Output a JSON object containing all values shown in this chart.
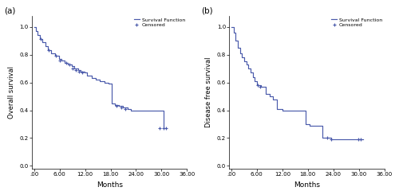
{
  "panel_a": {
    "label": "(a)",
    "ylabel": "Overall survival",
    "xlabel": "Months",
    "xlim": [
      -0.5,
      36
    ],
    "ylim": [
      -0.02,
      1.08
    ],
    "xticks": [
      0,
      6,
      12,
      18,
      24,
      30,
      36
    ],
    "xtick_labels": [
      ".00",
      "6.00",
      "12.00",
      "18.00",
      "24.00",
      "30.00",
      "36.00"
    ],
    "yticks": [
      0.0,
      0.2,
      0.4,
      0.6,
      0.8,
      1.0
    ],
    "ytick_labels": [
      "0.0",
      "0.2",
      "0.4",
      "0.6",
      "0.8",
      "1.0"
    ],
    "step_x": [
      0,
      0.4,
      0.8,
      1.3,
      2.0,
      2.6,
      3.3,
      4.0,
      5.0,
      5.8,
      6.5,
      7.2,
      8.0,
      8.8,
      9.5,
      10.3,
      11.0,
      11.8,
      12.5,
      13.5,
      14.5,
      15.5,
      16.5,
      17.5,
      18.2,
      19.0,
      20.0,
      21.0,
      22.0,
      22.8,
      23.5,
      29.0,
      30.5
    ],
    "step_y": [
      1.0,
      0.97,
      0.94,
      0.91,
      0.89,
      0.86,
      0.83,
      0.81,
      0.79,
      0.77,
      0.76,
      0.74,
      0.73,
      0.72,
      0.7,
      0.69,
      0.68,
      0.67,
      0.65,
      0.63,
      0.62,
      0.61,
      0.6,
      0.59,
      0.45,
      0.44,
      0.43,
      0.42,
      0.41,
      0.4,
      0.4,
      0.4,
      0.27
    ],
    "censored_x": [
      1.6,
      3.5,
      5.2,
      6.0,
      7.5,
      8.3,
      9.0,
      9.8,
      10.5,
      11.3,
      19.5,
      20.5,
      21.5,
      29.5,
      30.5,
      31.0
    ],
    "censored_y": [
      0.91,
      0.83,
      0.79,
      0.76,
      0.74,
      0.73,
      0.7,
      0.69,
      0.68,
      0.67,
      0.43,
      0.42,
      0.41,
      0.27,
      0.27,
      0.27
    ],
    "color": "#4a5aab",
    "legend_loc": "upper right"
  },
  "panel_b": {
    "label": "(b)",
    "ylabel": "Disease free survival",
    "xlabel": "Months",
    "xlim": [
      -0.5,
      36
    ],
    "ylim": [
      -0.02,
      1.08
    ],
    "xticks": [
      0,
      6,
      12,
      18,
      24,
      30,
      36
    ],
    "xtick_labels": [
      ".00",
      "6.00",
      "12.00",
      "18.00",
      "24.00",
      "30.00",
      "36.00"
    ],
    "yticks": [
      0.0,
      0.2,
      0.4,
      0.6,
      0.8,
      1.0
    ],
    "ytick_labels": [
      "0.0",
      "0.2",
      "0.4",
      "0.6",
      "0.8",
      "1.0"
    ],
    "step_x": [
      0,
      0.5,
      1.0,
      1.5,
      2.0,
      2.5,
      3.0,
      3.5,
      4.0,
      4.5,
      5.0,
      5.5,
      6.0,
      7.0,
      8.0,
      9.0,
      9.8,
      10.8,
      12.0,
      13.0,
      14.5,
      17.5,
      18.5,
      19.5,
      20.5,
      21.5,
      23.5,
      24.0,
      29.5,
      31.0
    ],
    "step_y": [
      1.0,
      0.96,
      0.9,
      0.85,
      0.81,
      0.78,
      0.75,
      0.73,
      0.7,
      0.67,
      0.64,
      0.61,
      0.58,
      0.57,
      0.52,
      0.5,
      0.48,
      0.41,
      0.4,
      0.4,
      0.4,
      0.3,
      0.29,
      0.29,
      0.29,
      0.2,
      0.19,
      0.19,
      0.19,
      0.19
    ],
    "censored_x": [
      6.3,
      6.8,
      22.5,
      23.5,
      29.8,
      30.5
    ],
    "censored_y": [
      0.58,
      0.57,
      0.2,
      0.19,
      0.19,
      0.19
    ],
    "color": "#4a5aab",
    "legend_loc": "upper right"
  }
}
